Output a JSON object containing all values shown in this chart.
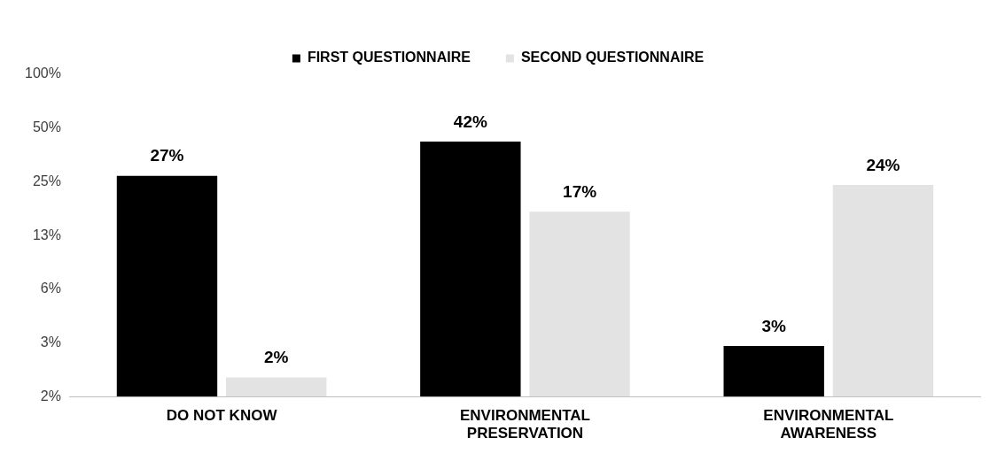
{
  "chart_data": {
    "type": "bar",
    "categories": [
      "DO NOT KNOW",
      "ENVIRONMENTAL PRESERVATION",
      "ENVIRONMENTAL AWARENESS"
    ],
    "series": [
      {
        "name": "FIRST QUESTIONNAIRE",
        "color": "#000000",
        "values": [
          27,
          42,
          3
        ],
        "value_labels": [
          "27%",
          "42%",
          "3%"
        ]
      },
      {
        "name": "SECOND QUESTIONNAIRE",
        "color": "#e3e3e3",
        "values": [
          2,
          17,
          24
        ],
        "value_labels": [
          "2%",
          "17%",
          "24%"
        ]
      }
    ],
    "log": true,
    "ylim": [
      1.5625,
      100
    ],
    "yticks": [
      {
        "value": 1.5625,
        "label": "2%"
      },
      {
        "value": 3.125,
        "label": "3%"
      },
      {
        "value": 6.25,
        "label": "6%"
      },
      {
        "value": 12.5,
        "label": "13%"
      },
      {
        "value": 25,
        "label": "25%"
      },
      {
        "value": 50,
        "label": "50%"
      },
      {
        "value": 100,
        "label": "100%"
      }
    ],
    "grid": false,
    "legend": "top"
  }
}
